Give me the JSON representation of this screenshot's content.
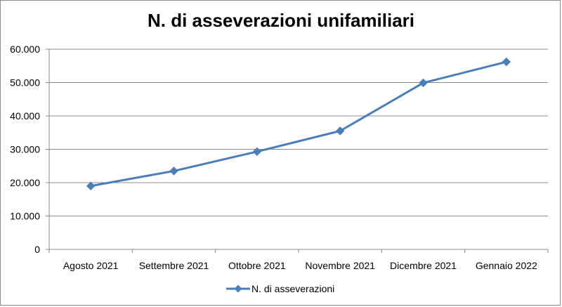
{
  "chart_data": {
    "type": "line",
    "title": "N. di asseverazioni unifamiliari",
    "xlabel": "",
    "ylabel": "",
    "categories": [
      "Agosto 2021",
      "Settembre 2021",
      "Ottobre 2021",
      "Novembre 2021",
      "Dicembre 2021",
      "Gennaio 2022"
    ],
    "series": [
      {
        "name": "N. di asseverazioni",
        "values": [
          19000,
          23500,
          29300,
          35500,
          49900,
          56200
        ],
        "color": "#4a7ebb"
      }
    ],
    "ylim": [
      0,
      60000
    ],
    "yticks": [
      0,
      10000,
      20000,
      30000,
      40000,
      50000,
      60000
    ],
    "ytick_labels": [
      "0",
      "10.000",
      "20.000",
      "30.000",
      "40.000",
      "50.000",
      "60.000"
    ],
    "grid": true,
    "legend": "bottom",
    "marker": "diamond"
  }
}
